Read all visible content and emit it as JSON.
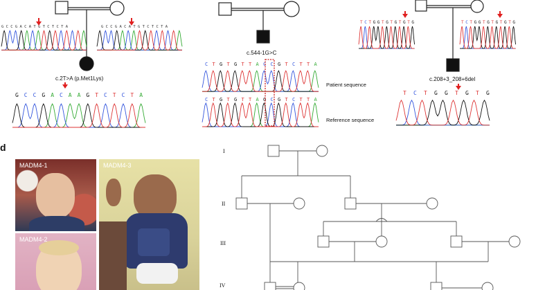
{
  "panel_d": {
    "letter": "d"
  },
  "family1": {
    "mutation": "c.2T>A (p.Met1Lys)",
    "parent1_seq": "G C C G A C A T G T C T C T A",
    "parent2_seq": "G C C G A C A T G T C T C T A",
    "child_seq": "G C C G A C A A G T C T C T A",
    "child_seq_colors": [
      "#222",
      "#3a3",
      "#3a3",
      "#222",
      "#c33",
      "#3a3",
      "#c33",
      "#c33",
      "#222",
      "#c33",
      "#3a3",
      "#c33",
      "#3a3",
      "#c33",
      "#c33"
    ]
  },
  "family2": {
    "mutation": "c.544-1G>C",
    "patient_seq": "C T G T G T T A C C G T C T T A",
    "reference_seq": "C T G T G T T A G C G T C T T A",
    "patient_label": "Patient sequence",
    "reference_label": "Reference sequence"
  },
  "family3": {
    "mutation": "c.208+3_208+6del",
    "parent1_seq": "T C T G G T G T G T G T G",
    "parent2_seq": "T C T G G T G T G T G T G",
    "child_seq": "T C T G G T G T G"
  },
  "photos": [
    {
      "label": "MADM4-1"
    },
    {
      "label": "MADM4-2"
    },
    {
      "label": "MADM4-3"
    }
  ],
  "generations": [
    "I",
    "II",
    "III",
    "IV"
  ],
  "colors": {
    "arrow": "#e02020",
    "affected": "#111111",
    "dotted_box": "#cc2222",
    "trace_a": "#33aa33",
    "trace_c": "#3355dd",
    "trace_g": "#111111",
    "trace_t": "#dd3333"
  }
}
